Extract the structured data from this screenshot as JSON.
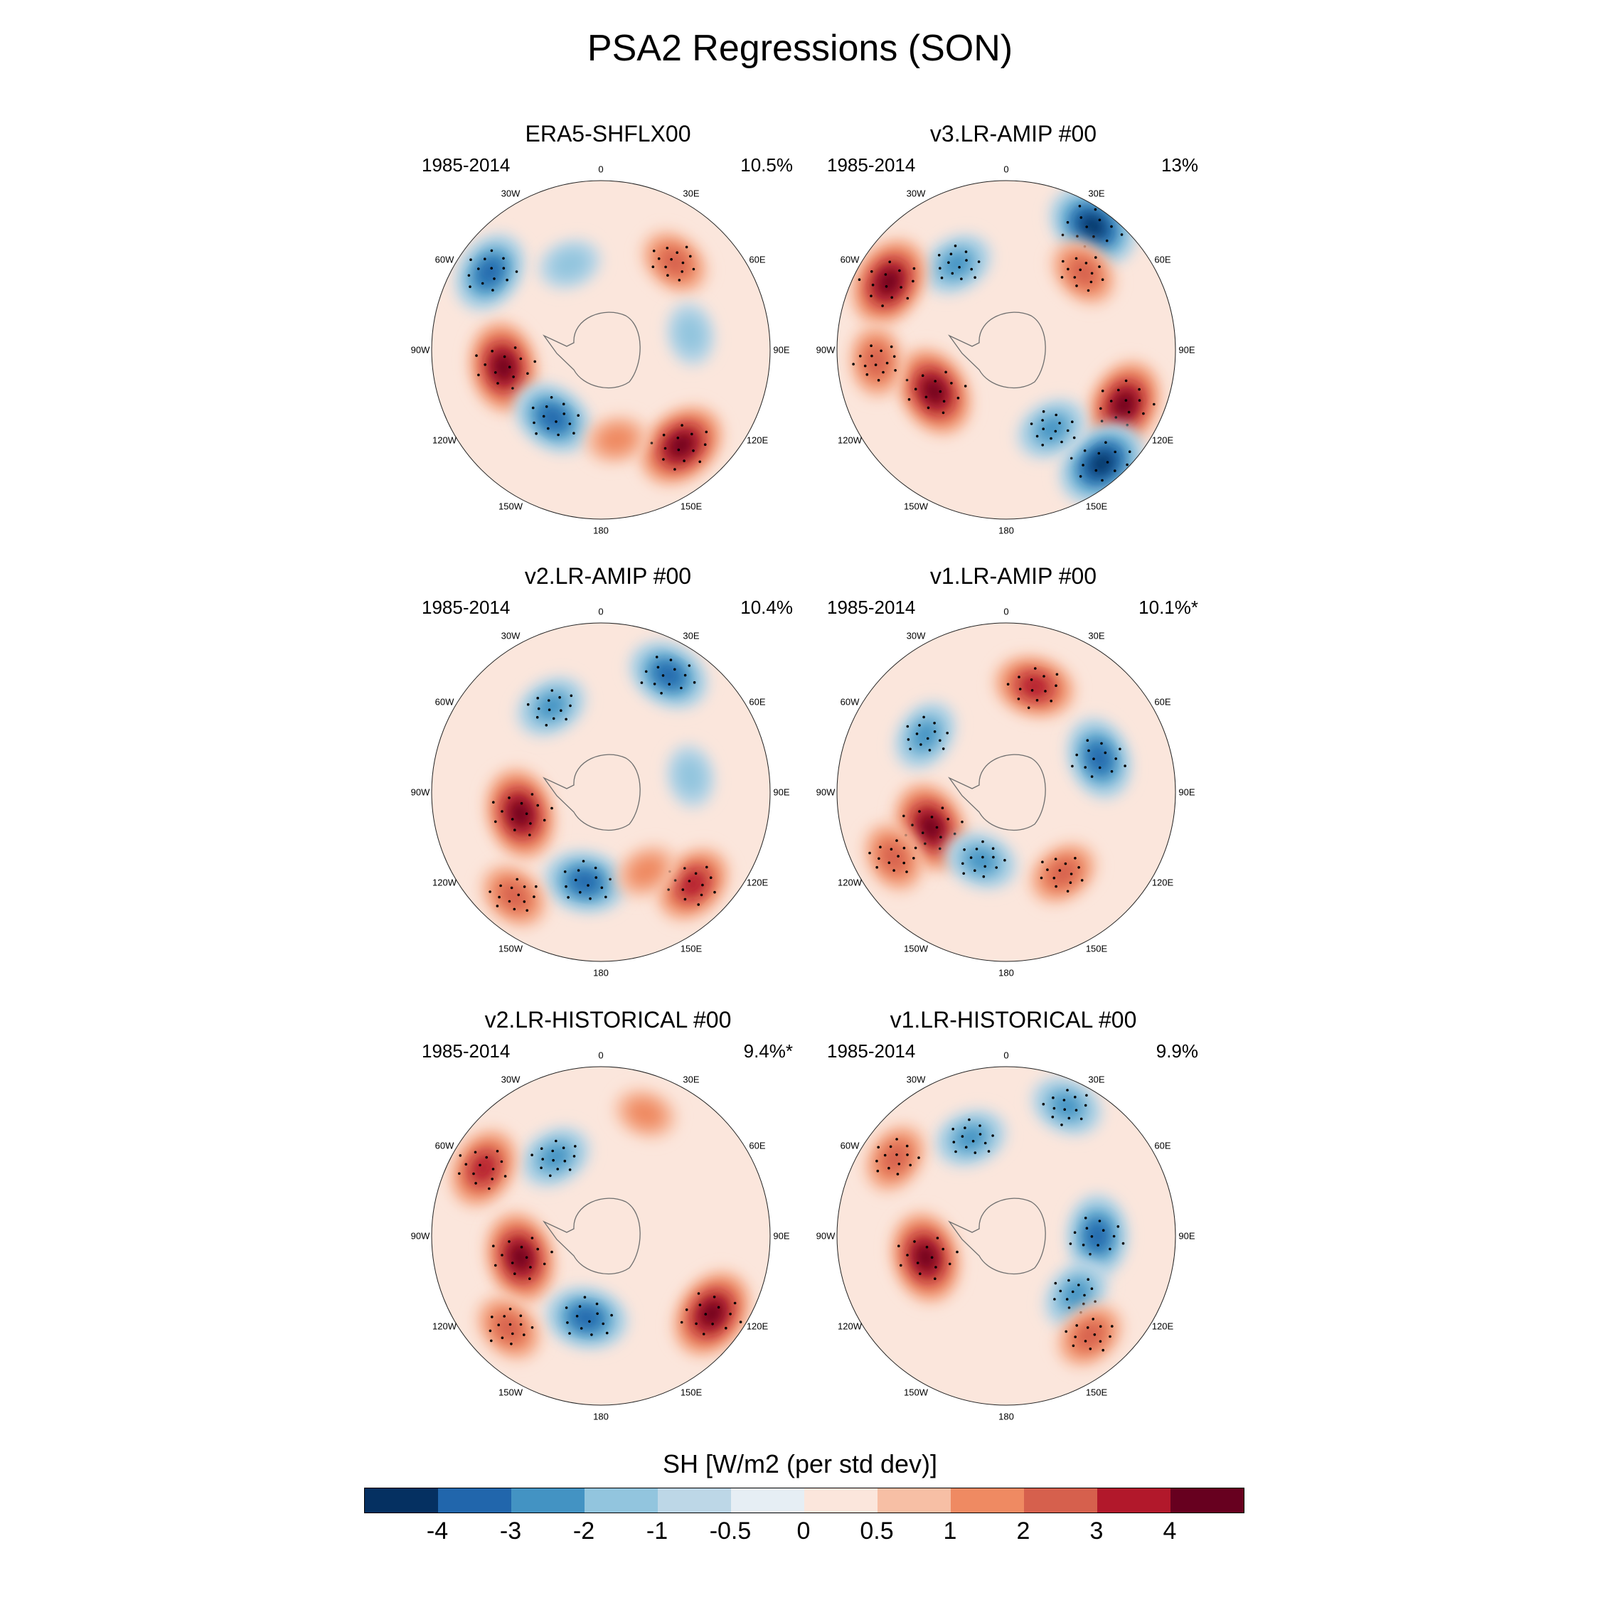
{
  "title": "PSA2 Regressions (SON)",
  "panels": [
    {
      "title": "ERA5-SHFLX00",
      "period": "1985-2014",
      "percent": "10.5%"
    },
    {
      "title": "v3.LR-AMIP  #00",
      "period": "1985-2014",
      "percent": "13%"
    },
    {
      "title": "v2.LR-AMIP  #00",
      "period": "1985-2014",
      "percent": "10.4%"
    },
    {
      "title": "v1.LR-AMIP  #00",
      "period": "1985-2014",
      "percent": "10.1%*"
    },
    {
      "title": "v2.LR-HISTORICAL  #00",
      "period": "1985-2014",
      "percent": "9.4%*"
    },
    {
      "title": "v1.LR-HISTORICAL  #00",
      "period": "1985-2014",
      "percent": "9.9%"
    }
  ],
  "longitude_labels": [
    "0",
    "30E",
    "60E",
    "90E",
    "120E",
    "150E",
    "180",
    "150W",
    "120W",
    "90W",
    "60W",
    "30W"
  ],
  "colorbar": {
    "label": "SH [W/m2 (per std dev)]",
    "ticks": [
      "-4",
      "-3",
      "-2",
      "-1",
      "-0.5",
      "0",
      "0.5",
      "1",
      "2",
      "3",
      "4"
    ],
    "colors": [
      "#053061",
      "#2166ac",
      "#4393c3",
      "#92c5de",
      "#bdd7e7",
      "#e6eef4",
      "#fbe6dc",
      "#f7bfa5",
      "#ef8a62",
      "#d6604d",
      "#b2182b",
      "#67001f"
    ]
  },
  "chart_data": {
    "type": "heatmap",
    "title": "PSA2 Regressions (SON)",
    "projection": "south polar stereographic",
    "variable": "SH [W/m2 (per std dev)]",
    "levels": [
      -4,
      -3,
      -2,
      -1,
      -0.5,
      0,
      0.5,
      1,
      2,
      3,
      4
    ],
    "panels": [
      {
        "name": "ERA5-SHFLX00",
        "period": "1985-2014",
        "explained_variance": "10.5%",
        "anomalies": [
          {
            "lon": -100,
            "lat": -52,
            "value": 4
          },
          {
            "lon": -145,
            "lat": -58,
            "value": -3
          },
          {
            "lon": 140,
            "lat": -42,
            "value": 4
          },
          {
            "lon": 170,
            "lat": -55,
            "value": 1
          },
          {
            "lon": 40,
            "lat": -46,
            "value": 2
          },
          {
            "lon": -55,
            "lat": -38,
            "value": -3
          },
          {
            "lon": -20,
            "lat": -55,
            "value": -1
          },
          {
            "lon": 80,
            "lat": -55,
            "value": -1
          }
        ]
      },
      {
        "name": "v3.LR-AMIP  #00",
        "period": "1985-2014",
        "explained_variance": "13%",
        "anomalies": [
          {
            "lon": -120,
            "lat": -58,
            "value": 4
          },
          {
            "lon": -30,
            "lat": -52,
            "value": -2
          },
          {
            "lon": -60,
            "lat": -38,
            "value": 4
          },
          {
            "lon": 35,
            "lat": -32,
            "value": -4
          },
          {
            "lon": 45,
            "lat": -48,
            "value": 2
          },
          {
            "lon": 115,
            "lat": -40,
            "value": 4
          },
          {
            "lon": 140,
            "lat": -33,
            "value": -4
          },
          {
            "lon": 150,
            "lat": -55,
            "value": -2
          },
          {
            "lon": -95,
            "lat": -40,
            "value": 2
          }
        ]
      },
      {
        "name": "v2.LR-AMIP  #00",
        "period": "1985-2014",
        "explained_variance": "10.4%",
        "anomalies": [
          {
            "lon": -105,
            "lat": -58,
            "value": 4
          },
          {
            "lon": -170,
            "lat": -55,
            "value": -3
          },
          {
            "lon": -30,
            "lat": -52,
            "value": -2
          },
          {
            "lon": 30,
            "lat": -38,
            "value": -3
          },
          {
            "lon": 135,
            "lat": -40,
            "value": 3
          },
          {
            "lon": 150,
            "lat": -55,
            "value": 1
          },
          {
            "lon": -140,
            "lat": -38,
            "value": 2
          },
          {
            "lon": 80,
            "lat": -55,
            "value": -1
          }
        ]
      },
      {
        "name": "v1.LR-AMIP  #00",
        "period": "1985-2014",
        "explained_variance": "10.1%*",
        "anomalies": [
          {
            "lon": -115,
            "lat": -58,
            "value": 4
          },
          {
            "lon": -55,
            "lat": -52,
            "value": -2
          },
          {
            "lon": 15,
            "lat": -48,
            "value": 3
          },
          {
            "lon": 70,
            "lat": -52,
            "value": -3
          },
          {
            "lon": 145,
            "lat": -52,
            "value": 2
          },
          {
            "lon": -160,
            "lat": -62,
            "value": -2
          },
          {
            "lon": -120,
            "lat": -40,
            "value": 2
          }
        ]
      },
      {
        "name": "v2.LR-HISTORICAL  #00",
        "period": "1985-2014",
        "explained_variance": "9.4%*",
        "anomalies": [
          {
            "lon": -105,
            "lat": -58,
            "value": 4
          },
          {
            "lon": -170,
            "lat": -58,
            "value": -3
          },
          {
            "lon": -30,
            "lat": -55,
            "value": -2
          },
          {
            "lon": 125,
            "lat": -38,
            "value": 4
          },
          {
            "lon": -60,
            "lat": -38,
            "value": 3
          },
          {
            "lon": -135,
            "lat": -40,
            "value": 2
          },
          {
            "lon": 20,
            "lat": -40,
            "value": 1
          }
        ]
      },
      {
        "name": "v1.LR-HISTORICAL  #00",
        "period": "1985-2014",
        "explained_variance": "9.9%",
        "anomalies": [
          {
            "lon": -105,
            "lat": -58,
            "value": 4
          },
          {
            "lon": -20,
            "lat": -50,
            "value": -2
          },
          {
            "lon": 25,
            "lat": -35,
            "value": -2
          },
          {
            "lon": 90,
            "lat": -55,
            "value": -3
          },
          {
            "lon": 130,
            "lat": -55,
            "value": -2
          },
          {
            "lon": -55,
            "lat": -38,
            "value": 2
          },
          {
            "lon": 140,
            "lat": -40,
            "value": 2
          }
        ]
      }
    ]
  }
}
